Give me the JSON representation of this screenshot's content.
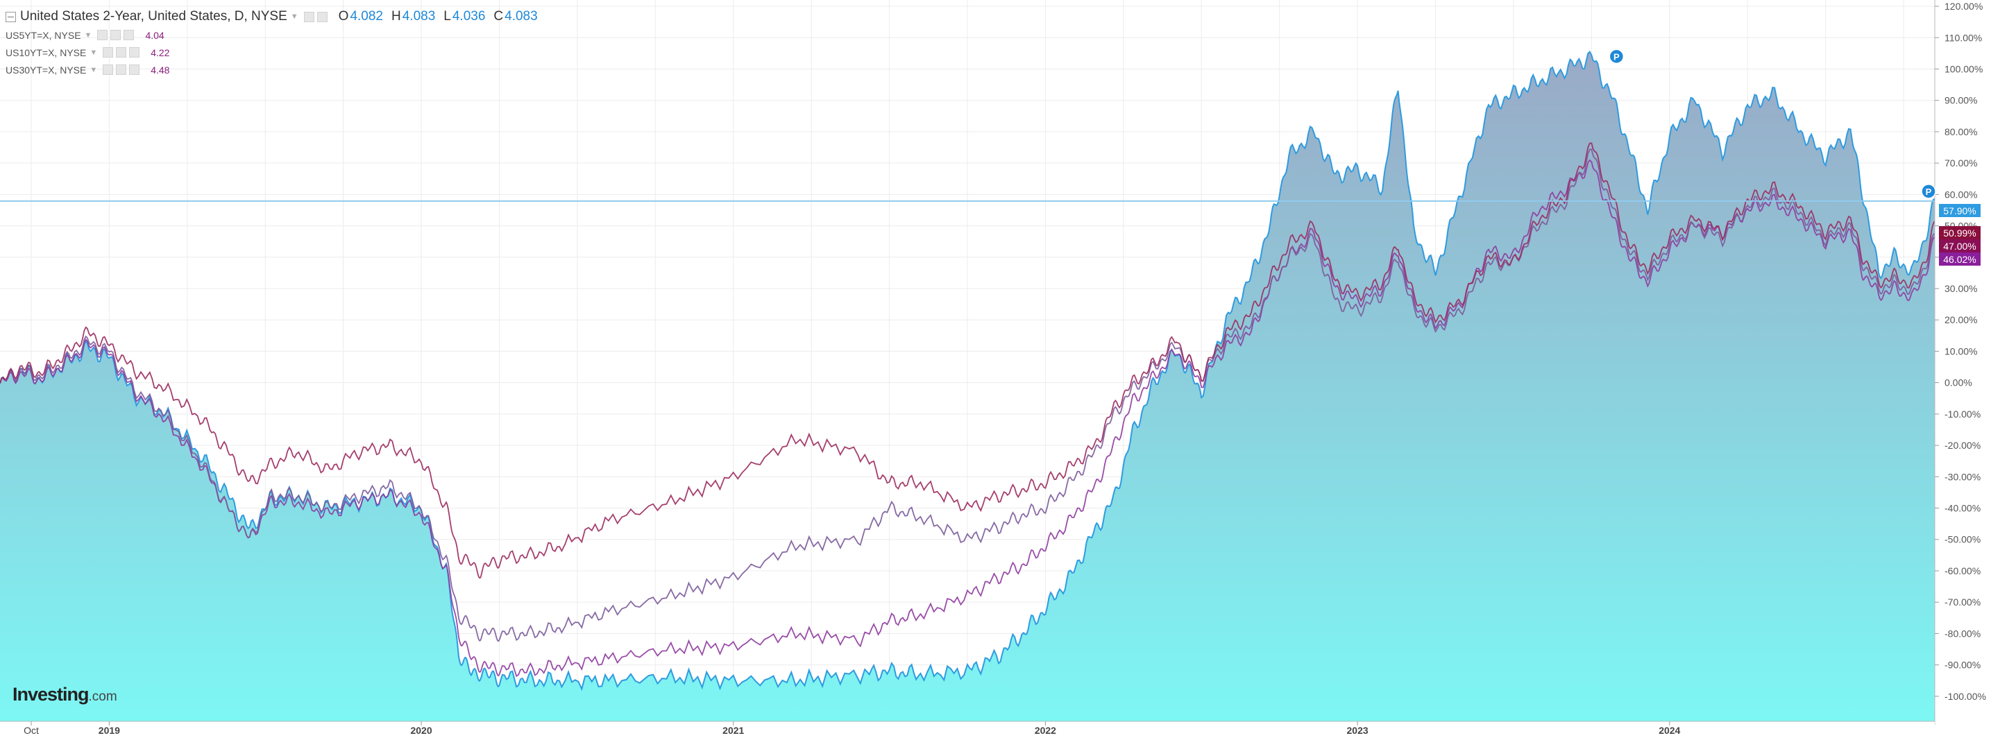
{
  "legend": {
    "main": {
      "symbol": "United States 2-Year, United States, D, NYSE",
      "o_label": "O",
      "o_value": "4.082",
      "h_label": "H",
      "h_value": "4.083",
      "l_label": "L",
      "l_value": "4.036",
      "c_label": "C",
      "c_value": "4.083"
    },
    "compare": [
      {
        "symbol": "US5YT=X, NYSE",
        "value": "4.04"
      },
      {
        "symbol": "US10YT=X, NYSE",
        "value": "4.22"
      },
      {
        "symbol": "US30YT=X, NYSE",
        "value": "4.48"
      }
    ]
  },
  "logo": {
    "brand": "Investing",
    "suffix": ".com"
  },
  "colors": {
    "main_line": "#2f9be0",
    "area_top": "#9aa9c6",
    "area_bottom": "#7df7f4",
    "us5": "#8e3a9e",
    "us10": "#7a5a9a",
    "us30": "#9b2a5e",
    "grid": "#ececec",
    "hline": "#8fcbee"
  },
  "chart_data": {
    "type": "line",
    "title": "United States 2-Year, United States, D, NYSE",
    "y_unit": "% change",
    "ylim": [
      -108,
      122
    ],
    "y_ticks": [
      120,
      110,
      100,
      90,
      80,
      70,
      60,
      50,
      40,
      30,
      20,
      10,
      0,
      -10,
      -20,
      -30,
      -40,
      -50,
      -60,
      -70,
      -80,
      -90,
      -100
    ],
    "x_tick_labels": [
      "Oct",
      "2019",
      "2020",
      "2021",
      "2022",
      "2023",
      "2024"
    ],
    "grid": true,
    "markers": [
      {
        "label": "P",
        "x": 2023.83,
        "y": 104
      },
      {
        "label": "P",
        "x": 2024.83,
        "y": 61
      }
    ],
    "price_line": {
      "value": 57.9,
      "label": "57.90%"
    },
    "last_value_labels": [
      {
        "label": "57.90%",
        "value": 57.9,
        "series": "United States 2-Year"
      },
      {
        "label": "50.99%",
        "value": 50.99,
        "series": "US30YT=X"
      },
      {
        "label": "47.00%",
        "value": 47.0,
        "series": "US10YT=X"
      },
      {
        "label": "46.02%",
        "value": 46.02,
        "series": "US5YT=X"
      }
    ],
    "series": [
      {
        "name": "United States 2-Year",
        "style": "area",
        "x": [
          2018.65,
          2018.72,
          2018.78,
          2018.86,
          2018.93,
          2019.0,
          2019.08,
          2019.18,
          2019.3,
          2019.38,
          2019.45,
          2019.52,
          2019.6,
          2019.7,
          2019.8,
          2019.9,
          2020.0,
          2020.08,
          2020.12,
          2020.16,
          2020.19,
          2020.22,
          2020.26,
          2020.35,
          2020.45,
          2020.6,
          2020.8,
          2021.0,
          2021.2,
          2021.4,
          2021.5,
          2021.6,
          2021.75,
          2021.85,
          2021.93,
          2022.0,
          2022.08,
          2022.16,
          2022.22,
          2022.28,
          2022.35,
          2022.42,
          2022.45,
          2022.5,
          2022.58,
          2022.66,
          2022.72,
          2022.78,
          2022.86,
          2022.93,
          2023.0,
          2023.08,
          2023.13,
          2023.18,
          2023.25,
          2023.33,
          2023.42,
          2023.5,
          2023.58,
          2023.67,
          2023.75,
          2023.82,
          2023.87,
          2023.93,
          2024.0,
          2024.08,
          2024.17,
          2024.25,
          2024.33,
          2024.42,
          2024.5,
          2024.58,
          2024.62,
          2024.67,
          2024.72,
          2024.78,
          2024.83,
          2024.85
        ],
        "y": [
          0,
          4,
          1,
          6,
          11,
          8,
          -4,
          -10,
          -24,
          -36,
          -47,
          -37,
          -36,
          -40,
          -38,
          -36,
          -40,
          -60,
          -86,
          -93,
          -92,
          -94,
          -94,
          -95,
          -95,
          -95,
          -94,
          -95,
          -95,
          -93,
          -92,
          -93,
          -92,
          -87,
          -80,
          -72,
          -62,
          -47,
          -37,
          -16,
          0,
          10,
          5,
          -3,
          20,
          34,
          50,
          72,
          80,
          66,
          68,
          62,
          95,
          48,
          35,
          60,
          88,
          92,
          96,
          100,
          104,
          90,
          75,
          55,
          78,
          90,
          74,
          88,
          92,
          80,
          72,
          80,
          60,
          35,
          40,
          35,
          50,
          58
        ]
      },
      {
        "name": "US5YT=X",
        "style": "line",
        "x": [
          2018.65,
          2018.72,
          2018.78,
          2018.86,
          2018.93,
          2019.0,
          2019.08,
          2019.18,
          2019.3,
          2019.38,
          2019.45,
          2019.52,
          2019.6,
          2019.7,
          2019.8,
          2019.9,
          2020.0,
          2020.08,
          2020.12,
          2020.16,
          2020.19,
          2020.22,
          2020.26,
          2020.35,
          2020.45,
          2020.6,
          2020.8,
          2021.0,
          2021.2,
          2021.4,
          2021.5,
          2021.6,
          2021.75,
          2021.85,
          2021.93,
          2022.0,
          2022.08,
          2022.16,
          2022.22,
          2022.28,
          2022.35,
          2022.42,
          2022.45,
          2022.5,
          2022.58,
          2022.66,
          2022.72,
          2022.78,
          2022.86,
          2022.93,
          2023.0,
          2023.08,
          2023.13,
          2023.18,
          2023.25,
          2023.33,
          2023.42,
          2023.5,
          2023.58,
          2023.67,
          2023.75,
          2023.82,
          2023.87,
          2023.93,
          2024.0,
          2024.08,
          2024.17,
          2024.25,
          2024.33,
          2024.42,
          2024.5,
          2024.58,
          2024.62,
          2024.67,
          2024.72,
          2024.78,
          2024.83,
          2024.85
        ],
        "y": [
          0,
          3,
          1,
          6,
          12,
          9,
          -3,
          -12,
          -27,
          -40,
          -50,
          -38,
          -38,
          -42,
          -38,
          -36,
          -42,
          -60,
          -80,
          -88,
          -90,
          -91,
          -91,
          -92,
          -90,
          -88,
          -85,
          -84,
          -80,
          -82,
          -76,
          -74,
          -68,
          -62,
          -58,
          -52,
          -44,
          -33,
          -20,
          -6,
          2,
          10,
          6,
          0,
          12,
          16,
          30,
          40,
          48,
          30,
          26,
          30,
          42,
          25,
          18,
          25,
          42,
          40,
          55,
          62,
          70,
          52,
          40,
          32,
          42,
          50,
          48,
          55,
          58,
          52,
          45,
          48,
          35,
          28,
          30,
          27,
          38,
          46.02
        ]
      },
      {
        "name": "US10YT=X",
        "style": "line",
        "x": [
          2018.65,
          2018.72,
          2018.78,
          2018.86,
          2018.93,
          2019.0,
          2019.08,
          2019.18,
          2019.3,
          2019.38,
          2019.45,
          2019.52,
          2019.6,
          2019.7,
          2019.8,
          2019.9,
          2020.0,
          2020.08,
          2020.12,
          2020.16,
          2020.19,
          2020.22,
          2020.26,
          2020.35,
          2020.45,
          2020.6,
          2020.8,
          2021.0,
          2021.2,
          2021.4,
          2021.5,
          2021.6,
          2021.75,
          2021.85,
          2021.93,
          2022.0,
          2022.08,
          2022.16,
          2022.22,
          2022.28,
          2022.35,
          2022.42,
          2022.45,
          2022.5,
          2022.58,
          2022.66,
          2022.72,
          2022.78,
          2022.86,
          2022.93,
          2023.0,
          2023.08,
          2023.13,
          2023.18,
          2023.25,
          2023.33,
          2023.42,
          2023.5,
          2023.58,
          2023.67,
          2023.75,
          2023.82,
          2023.87,
          2023.93,
          2024.0,
          2024.08,
          2024.17,
          2024.25,
          2024.33,
          2024.42,
          2024.5,
          2024.58,
          2024.62,
          2024.67,
          2024.72,
          2024.78,
          2024.83,
          2024.85
        ],
        "y": [
          0,
          4,
          2,
          7,
          13,
          10,
          -2,
          -10,
          -26,
          -40,
          -50,
          -36,
          -36,
          -40,
          -36,
          -33,
          -40,
          -57,
          -74,
          -78,
          -80,
          -80,
          -80,
          -80,
          -78,
          -73,
          -68,
          -62,
          -52,
          -50,
          -40,
          -43,
          -50,
          -46,
          -42,
          -40,
          -32,
          -22,
          -10,
          -2,
          5,
          12,
          8,
          2,
          14,
          18,
          30,
          40,
          46,
          26,
          23,
          28,
          40,
          23,
          17,
          23,
          38,
          38,
          50,
          58,
          74,
          55,
          42,
          34,
          44,
          50,
          46,
          56,
          60,
          54,
          46,
          50,
          38,
          30,
          32,
          29,
          40,
          47.0
        ]
      },
      {
        "name": "US30YT=X",
        "style": "line",
        "x": [
          2018.65,
          2018.72,
          2018.78,
          2018.86,
          2018.93,
          2019.0,
          2019.08,
          2019.18,
          2019.3,
          2019.38,
          2019.45,
          2019.52,
          2019.6,
          2019.7,
          2019.8,
          2019.9,
          2020.0,
          2020.08,
          2020.12,
          2020.16,
          2020.19,
          2020.22,
          2020.26,
          2020.35,
          2020.45,
          2020.6,
          2020.8,
          2021.0,
          2021.2,
          2021.4,
          2021.5,
          2021.6,
          2021.75,
          2021.85,
          2021.93,
          2022.0,
          2022.08,
          2022.16,
          2022.22,
          2022.28,
          2022.35,
          2022.42,
          2022.45,
          2022.5,
          2022.58,
          2022.66,
          2022.72,
          2022.78,
          2022.86,
          2022.93,
          2023.0,
          2023.08,
          2023.13,
          2023.18,
          2023.25,
          2023.33,
          2023.42,
          2023.5,
          2023.58,
          2023.67,
          2023.75,
          2023.82,
          2023.87,
          2023.93,
          2024.0,
          2024.08,
          2024.17,
          2024.25,
          2024.33,
          2024.42,
          2024.5,
          2024.58,
          2024.62,
          2024.67,
          2024.72,
          2024.78,
          2024.83,
          2024.85
        ],
        "y": [
          0,
          5,
          3,
          9,
          16,
          12,
          4,
          -2,
          -12,
          -22,
          -32,
          -26,
          -22,
          -28,
          -22,
          -20,
          -25,
          -40,
          -55,
          -58,
          -60,
          -58,
          -56,
          -55,
          -52,
          -44,
          -38,
          -30,
          -18,
          -22,
          -32,
          -32,
          -40,
          -36,
          -34,
          -32,
          -27,
          -20,
          -8,
          0,
          6,
          14,
          8,
          2,
          16,
          22,
          33,
          44,
          50,
          32,
          28,
          32,
          44,
          27,
          20,
          26,
          40,
          38,
          52,
          60,
          76,
          58,
          44,
          36,
          46,
          52,
          48,
          58,
          62,
          56,
          48,
          52,
          40,
          32,
          34,
          31,
          42,
          50.99
        ]
      }
    ]
  }
}
